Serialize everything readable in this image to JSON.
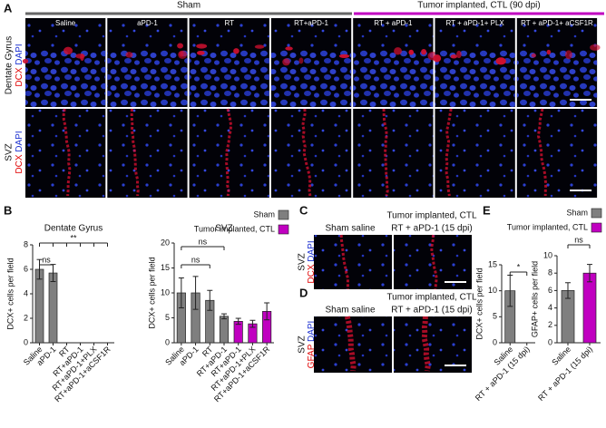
{
  "figure": {
    "panel_a": {
      "label": "A",
      "groups": [
        "Sham",
        "Tumor implanted, CTL (90 dpi)"
      ],
      "columns": [
        "Saline",
        "aPD-1",
        "RT",
        "RT+aPD-1",
        "RT + aPD-1",
        "RT + aPD-1+ PLX",
        "RT + aPD-1+ aCSF1R"
      ],
      "row_1": {
        "region": "Dentate Gyrus",
        "stain_1": "DCX",
        "stain_2": "DAPI"
      },
      "row_2": {
        "region": "SVZ",
        "stain_1": "DCX",
        "stain_2": "DAPI"
      }
    },
    "panel_b": {
      "label": "B",
      "legend": [
        {
          "name": "Sham",
          "color": "#7f7f7f"
        },
        {
          "name": "Tumor implanted, CTL",
          "color": "#c000c0"
        }
      ]
    },
    "panel_c": {
      "label": "C",
      "group": "Tumor implanted, CTL",
      "columns": [
        "Sham saline",
        "RT + aPD-1 (15 dpi)"
      ],
      "region": "SVZ",
      "stain_1": "DCX",
      "stain_2": "DAPI"
    },
    "panel_d": {
      "label": "D",
      "group": "Tumor implanted, CTL",
      "columns": [
        "Sham saline",
        "RT + aPD-1 (15 dpi)"
      ],
      "region": "SVZ",
      "stain_1": "GFAP",
      "stain_2": "DAPI"
    },
    "panel_e": {
      "label": "E",
      "legend": [
        {
          "name": "Sham",
          "color": "#7f7f7f"
        },
        {
          "name": "Tumor implanted, CTL",
          "color": "#c000c0"
        }
      ]
    }
  },
  "chart_data": [
    {
      "type": "bar",
      "title": "Dentate Gyrus",
      "y_label": "DCX+ cells per field",
      "categories": [
        "Saline",
        "aPD-1",
        "RT",
        "RT+aPD-1",
        "RT+aPD-1+PLX",
        "RT+aPD-1+aCSF1R"
      ],
      "values": [
        6,
        5.7,
        null,
        null,
        null,
        null
      ],
      "errors": [
        0.8,
        0.7,
        null,
        null,
        null,
        null
      ],
      "colors": [
        "#7f7f7f",
        "#7f7f7f",
        "#7f7f7f",
        "#7f7f7f",
        "#7f7f7f",
        "#7f7f7f"
      ],
      "ylim": [
        0,
        8
      ],
      "yticks": [
        0,
        2,
        4,
        6,
        8
      ],
      "annotations": [
        "ns",
        "**"
      ]
    },
    {
      "type": "bar",
      "title": "SVZ",
      "y_label": "DCX+ cells per field",
      "categories": [
        "Saline",
        "aPD-1",
        "RT",
        "RT+aPD-1",
        "RT+aPD-1",
        "RT+aPD-1+PLX",
        "RT+aPD-1+aCSF1R"
      ],
      "values": [
        10,
        10,
        8.5,
        5.3,
        4.3,
        3.8,
        6.3
      ],
      "errors": [
        3,
        3.3,
        2,
        0.5,
        0.6,
        0.7,
        1.7
      ],
      "colors": [
        "#7f7f7f",
        "#7f7f7f",
        "#7f7f7f",
        "#7f7f7f",
        "#c000c0",
        "#c000c0",
        "#c000c0"
      ],
      "ylim": [
        0,
        20
      ],
      "yticks": [
        0,
        5,
        10,
        15,
        20
      ],
      "annotations": [
        "ns",
        "ns"
      ]
    },
    {
      "type": "bar",
      "y_label": "DCX+ cells per field",
      "categories": [
        "Saline",
        "RT + aPD-1 (15 dpi)"
      ],
      "values": [
        10,
        0
      ],
      "errors": [
        3,
        0
      ],
      "colors": [
        "#7f7f7f",
        "#c000c0"
      ],
      "ylim": [
        0,
        15
      ],
      "yticks": [
        0,
        5,
        10,
        15
      ],
      "annotations": [
        "*"
      ]
    },
    {
      "type": "bar",
      "y_label": "GFAP+ cells per field",
      "categories": [
        "Saline",
        "RT + aPD-1 (15 dpi)"
      ],
      "values": [
        6,
        8
      ],
      "errors": [
        0.9,
        1
      ],
      "colors": [
        "#7f7f7f",
        "#c000c0"
      ],
      "ylim": [
        0,
        10
      ],
      "yticks": [
        0,
        2,
        4,
        6,
        8,
        10
      ],
      "annotations": [
        "ns"
      ]
    }
  ]
}
